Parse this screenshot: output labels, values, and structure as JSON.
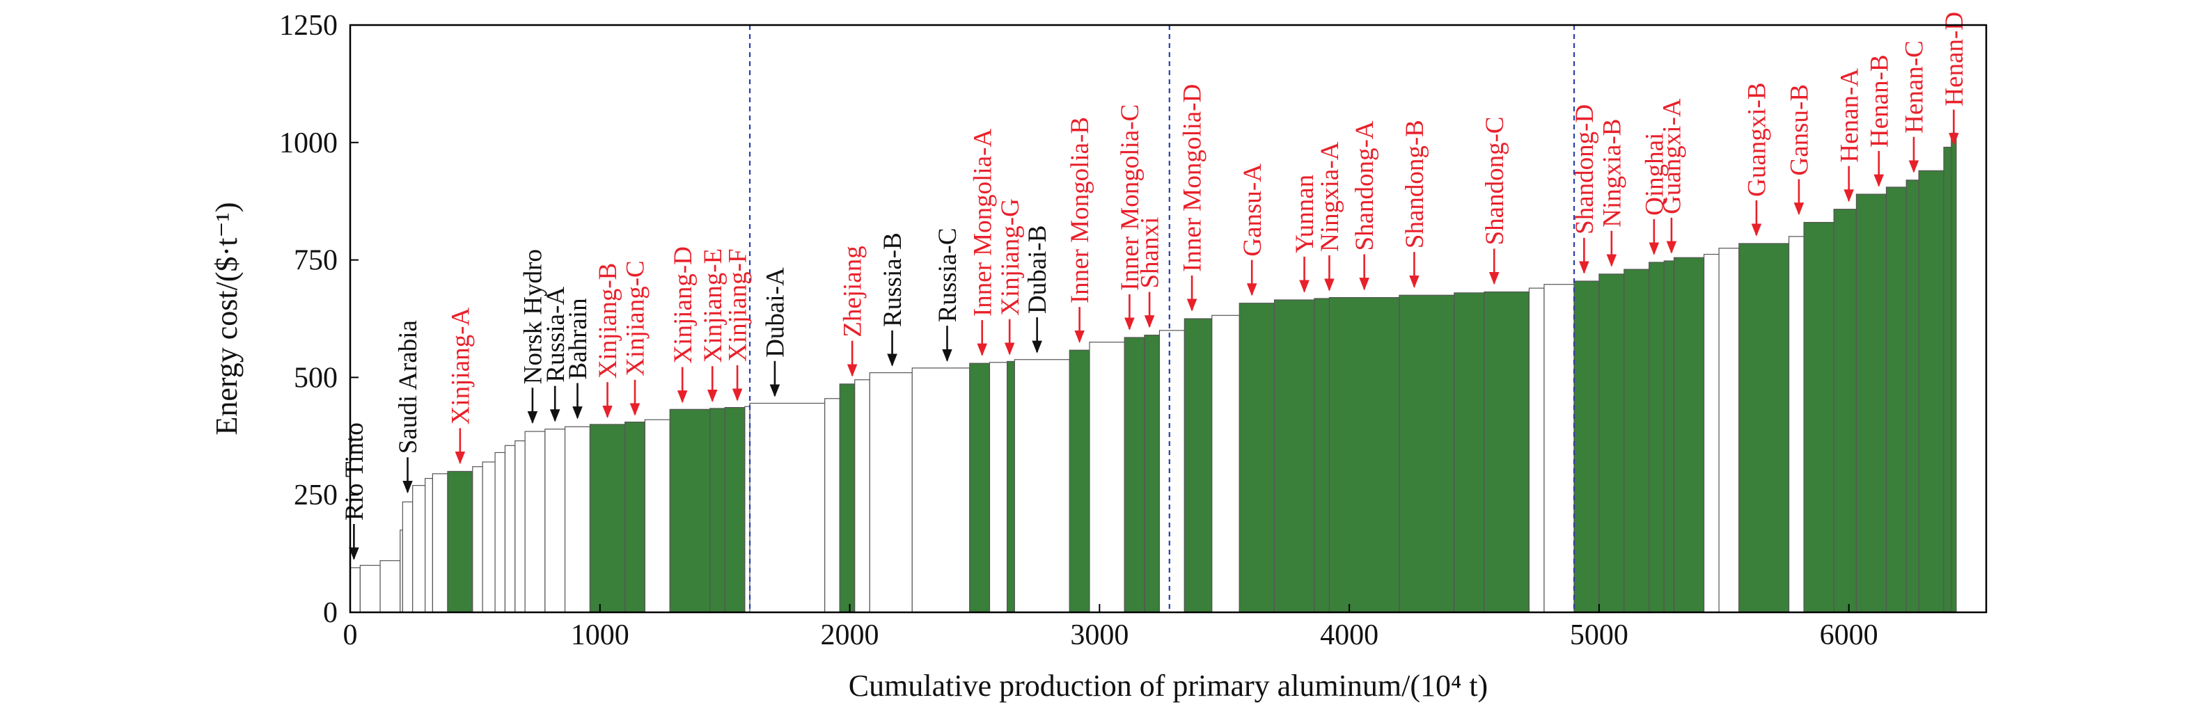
{
  "chart_data": {
    "type": "bar",
    "subtype": "cost-supply-curve",
    "title": "",
    "xlabel": "Cumulative production of primary aluminum/(10⁴ t)",
    "ylabel": "Energy cost/($·t⁻¹)",
    "xlim": [
      0,
      6550
    ],
    "ylim": [
      0,
      1250
    ],
    "xticks": [
      0,
      1000,
      2000,
      3000,
      4000,
      5000,
      6000
    ],
    "xtick_labels": [
      "0",
      "1000",
      "2000",
      "3000",
      "4000",
      "5000",
      "6000"
    ],
    "yticks": [
      0,
      250,
      500,
      750,
      1000,
      1250
    ],
    "ytick_labels": [
      "0",
      "250",
      "500",
      "750",
      "1000",
      "1250"
    ],
    "grid": false,
    "legend": "none",
    "colors": {
      "china": "#3a7f3a",
      "other": "#ffffff",
      "bar_edge": "#555555",
      "china_label": "#e8202a",
      "other_label": "#111111",
      "divider": "#2b3fa8",
      "axis": "#000000"
    },
    "dividers_x": [
      1600,
      3280,
      4900
    ],
    "bars": [
      {
        "x0": 0,
        "x1": 40,
        "y": 95,
        "china": false
      },
      {
        "x0": 40,
        "x1": 120,
        "y": 100,
        "china": false
      },
      {
        "x0": 120,
        "x1": 200,
        "y": 110,
        "china": false
      },
      {
        "x0": 200,
        "x1": 210,
        "y": 175,
        "china": false
      },
      {
        "x0": 210,
        "x1": 250,
        "y": 235,
        "china": false
      },
      {
        "x0": 250,
        "x1": 300,
        "y": 270,
        "china": false
      },
      {
        "x0": 300,
        "x1": 330,
        "y": 285,
        "china": false
      },
      {
        "x0": 330,
        "x1": 390,
        "y": 295,
        "china": false
      },
      {
        "x0": 390,
        "x1": 490,
        "y": 300,
        "china": true
      },
      {
        "x0": 490,
        "x1": 530,
        "y": 310,
        "china": false
      },
      {
        "x0": 530,
        "x1": 580,
        "y": 320,
        "china": false
      },
      {
        "x0": 580,
        "x1": 620,
        "y": 340,
        "china": false
      },
      {
        "x0": 620,
        "x1": 660,
        "y": 355,
        "china": false
      },
      {
        "x0": 660,
        "x1": 700,
        "y": 365,
        "china": false
      },
      {
        "x0": 700,
        "x1": 780,
        "y": 385,
        "china": false
      },
      {
        "x0": 780,
        "x1": 860,
        "y": 390,
        "china": false
      },
      {
        "x0": 860,
        "x1": 960,
        "y": 395,
        "china": false
      },
      {
        "x0": 960,
        "x1": 1100,
        "y": 400,
        "china": true
      },
      {
        "x0": 1100,
        "x1": 1180,
        "y": 405,
        "china": true
      },
      {
        "x0": 1180,
        "x1": 1280,
        "y": 410,
        "china": false
      },
      {
        "x0": 1280,
        "x1": 1440,
        "y": 432,
        "china": true
      },
      {
        "x0": 1440,
        "x1": 1500,
        "y": 434,
        "china": true
      },
      {
        "x0": 1500,
        "x1": 1580,
        "y": 436,
        "china": true
      },
      {
        "x0": 1580,
        "x1": 1600,
        "y": 438,
        "china": false
      },
      {
        "x0": 1600,
        "x1": 1900,
        "y": 445,
        "china": false
      },
      {
        "x0": 1900,
        "x1": 1960,
        "y": 455,
        "china": false
      },
      {
        "x0": 1960,
        "x1": 2020,
        "y": 486,
        "china": true
      },
      {
        "x0": 2020,
        "x1": 2080,
        "y": 495,
        "china": false
      },
      {
        "x0": 2080,
        "x1": 2250,
        "y": 510,
        "china": false
      },
      {
        "x0": 2250,
        "x1": 2480,
        "y": 520,
        "china": false
      },
      {
        "x0": 2480,
        "x1": 2560,
        "y": 530,
        "china": true
      },
      {
        "x0": 2560,
        "x1": 2630,
        "y": 532,
        "china": false
      },
      {
        "x0": 2630,
        "x1": 2660,
        "y": 534,
        "china": true
      },
      {
        "x0": 2660,
        "x1": 2880,
        "y": 538,
        "china": false
      },
      {
        "x0": 2880,
        "x1": 2960,
        "y": 558,
        "china": true
      },
      {
        "x0": 2960,
        "x1": 3100,
        "y": 575,
        "china": false
      },
      {
        "x0": 3100,
        "x1": 3180,
        "y": 585,
        "china": true
      },
      {
        "x0": 3180,
        "x1": 3240,
        "y": 590,
        "china": true
      },
      {
        "x0": 3240,
        "x1": 3340,
        "y": 600,
        "china": false
      },
      {
        "x0": 3340,
        "x1": 3450,
        "y": 625,
        "china": true
      },
      {
        "x0": 3450,
        "x1": 3560,
        "y": 632,
        "china": false
      },
      {
        "x0": 3560,
        "x1": 3700,
        "y": 658,
        "china": true
      },
      {
        "x0": 3700,
        "x1": 3860,
        "y": 665,
        "china": true
      },
      {
        "x0": 3860,
        "x1": 3920,
        "y": 668,
        "china": true
      },
      {
        "x0": 3920,
        "x1": 4200,
        "y": 670,
        "china": true
      },
      {
        "x0": 4200,
        "x1": 4420,
        "y": 675,
        "china": true
      },
      {
        "x0": 4420,
        "x1": 4540,
        "y": 680,
        "china": true
      },
      {
        "x0": 4540,
        "x1": 4720,
        "y": 682,
        "china": true
      },
      {
        "x0": 4720,
        "x1": 4780,
        "y": 690,
        "china": false
      },
      {
        "x0": 4780,
        "x1": 4900,
        "y": 698,
        "china": false
      },
      {
        "x0": 4900,
        "x1": 5000,
        "y": 705,
        "china": true
      },
      {
        "x0": 5000,
        "x1": 5100,
        "y": 720,
        "china": true
      },
      {
        "x0": 5100,
        "x1": 5200,
        "y": 730,
        "china": true
      },
      {
        "x0": 5200,
        "x1": 5260,
        "y": 745,
        "china": true
      },
      {
        "x0": 5260,
        "x1": 5300,
        "y": 748,
        "china": true
      },
      {
        "x0": 5300,
        "x1": 5420,
        "y": 755,
        "china": true
      },
      {
        "x0": 5420,
        "x1": 5480,
        "y": 762,
        "china": false
      },
      {
        "x0": 5480,
        "x1": 5560,
        "y": 775,
        "china": false
      },
      {
        "x0": 5560,
        "x1": 5760,
        "y": 785,
        "china": true
      },
      {
        "x0": 5760,
        "x1": 5820,
        "y": 800,
        "china": false
      },
      {
        "x0": 5820,
        "x1": 5940,
        "y": 830,
        "china": true
      },
      {
        "x0": 5940,
        "x1": 6030,
        "y": 858,
        "china": true
      },
      {
        "x0": 6030,
        "x1": 6150,
        "y": 890,
        "china": true
      },
      {
        "x0": 6150,
        "x1": 6230,
        "y": 905,
        "china": true
      },
      {
        "x0": 6230,
        "x1": 6280,
        "y": 920,
        "china": true
      },
      {
        "x0": 6280,
        "x1": 6380,
        "y": 940,
        "china": true
      },
      {
        "x0": 6380,
        "x1": 6410,
        "y": 990,
        "china": true
      },
      {
        "x0": 6410,
        "x1": 6430,
        "y": 1020,
        "china": true
      }
    ],
    "annotations": [
      {
        "label": "Rio Tinto",
        "x": 15,
        "tip": 108,
        "china": false
      },
      {
        "label": "Saudi Arabia",
        "x": 230,
        "tip": 250,
        "china": false
      },
      {
        "label": "Xinjiang-A",
        "x": 440,
        "tip": 312,
        "china": true
      },
      {
        "label": "Norsk Hydro",
        "x": 730,
        "tip": 398,
        "china": false
      },
      {
        "label": "Russia-A",
        "x": 820,
        "tip": 402,
        "china": false
      },
      {
        "label": "Bahrain",
        "x": 910,
        "tip": 408,
        "china": false
      },
      {
        "label": "Xinjiang-B",
        "x": 1030,
        "tip": 410,
        "china": true
      },
      {
        "label": "Xinjiang-C",
        "x": 1140,
        "tip": 415,
        "china": true
      },
      {
        "label": "Xinjiang-D",
        "x": 1330,
        "tip": 442,
        "china": true
      },
      {
        "label": "Xinjiang-E",
        "x": 1450,
        "tip": 444,
        "china": true
      },
      {
        "label": "Xinjiang-F",
        "x": 1550,
        "tip": 446,
        "china": true
      },
      {
        "label": "Dubai-A",
        "x": 1700,
        "tip": 455,
        "china": false
      },
      {
        "label": "Zhejiang",
        "x": 2010,
        "tip": 498,
        "china": true
      },
      {
        "label": "Russia-B",
        "x": 2170,
        "tip": 520,
        "china": false
      },
      {
        "label": "Russia-C",
        "x": 2390,
        "tip": 530,
        "china": false
      },
      {
        "label": "Inner Mongolia-A",
        "x": 2530,
        "tip": 542,
        "china": true
      },
      {
        "label": "Xinjiang-G",
        "x": 2640,
        "tip": 544,
        "china": true
      },
      {
        "label": "Dubai-B",
        "x": 2750,
        "tip": 548,
        "china": false
      },
      {
        "label": "Inner Mongolia-B",
        "x": 2920,
        "tip": 570,
        "china": true
      },
      {
        "label": "Inner Mongolia-C",
        "x": 3120,
        "tip": 597,
        "china": true
      },
      {
        "label": "Shanxi",
        "x": 3200,
        "tip": 602,
        "china": true
      },
      {
        "label": "Inner Mongolia-D",
        "x": 3370,
        "tip": 637,
        "china": true
      },
      {
        "label": "Gansu-A",
        "x": 3610,
        "tip": 670,
        "china": true
      },
      {
        "label": "Yunnan",
        "x": 3820,
        "tip": 677,
        "china": true
      },
      {
        "label": "Ningxia-A",
        "x": 3920,
        "tip": 680,
        "china": true
      },
      {
        "label": "Shandong-A",
        "x": 4060,
        "tip": 682,
        "china": true
      },
      {
        "label": "Shandong-B",
        "x": 4260,
        "tip": 687,
        "china": true
      },
      {
        "label": "Shandong-C",
        "x": 4580,
        "tip": 694,
        "china": true
      },
      {
        "label": "Shandong-D",
        "x": 4940,
        "tip": 717,
        "china": true
      },
      {
        "label": "Ningxia-B",
        "x": 5050,
        "tip": 732,
        "china": true
      },
      {
        "label": "Qinghai",
        "x": 5220,
        "tip": 757,
        "china": true
      },
      {
        "label": "Guangxi-A",
        "x": 5290,
        "tip": 760,
        "china": true
      },
      {
        "label": "Guangxi-B",
        "x": 5630,
        "tip": 797,
        "china": true
      },
      {
        "label": "Gansu-B",
        "x": 5800,
        "tip": 842,
        "china": true
      },
      {
        "label": "Henan-A",
        "x": 6000,
        "tip": 870,
        "china": true
      },
      {
        "label": "Henan-B",
        "x": 6120,
        "tip": 902,
        "china": true
      },
      {
        "label": "Henan-C",
        "x": 6260,
        "tip": 932,
        "china": true
      },
      {
        "label": "Henan-D",
        "x": 6420,
        "tip": 990,
        "china": true
      }
    ]
  }
}
